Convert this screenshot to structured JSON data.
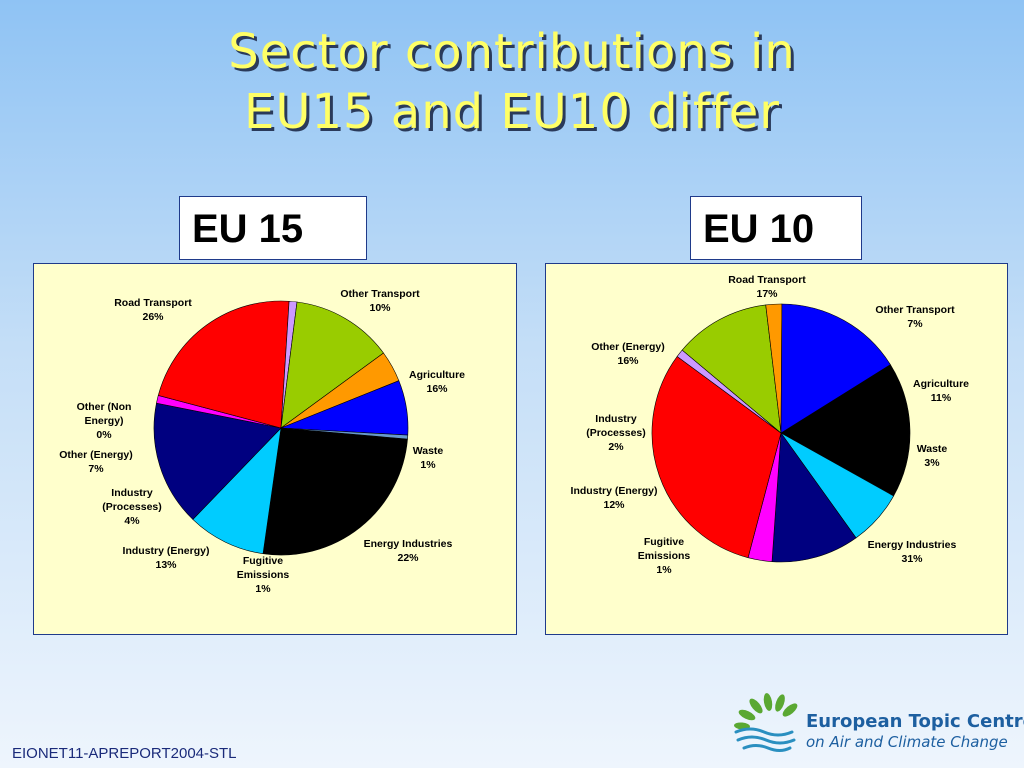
{
  "slide": {
    "title_line1": "Sector contributions in",
    "title_line2": "EU15 and EU10 differ",
    "footer": "EIONET11-APREPORT2004-STL",
    "logo": {
      "line1": "European Topic Centre",
      "line2": "on Air and Climate Change",
      "icon": "leaf-fan-water-icon"
    }
  },
  "colors": {
    "road_transport": "#000000",
    "other_transport": "#00ccff",
    "agriculture": "#000080",
    "waste": "#ff00ff",
    "energy_industries": "#ff0000",
    "fugitive_emissions": "#cc99ff",
    "industry_energy": "#99cc00",
    "industry_processes": "#ff9900",
    "other_energy": "#0000ff",
    "other_non_energy": "#6699cc"
  },
  "chart_data": [
    {
      "type": "pie",
      "title": "EU 15",
      "slices": [
        {
          "key": "road_transport",
          "label": "Road Transport",
          "value": 26,
          "value_label": "26%"
        },
        {
          "key": "other_transport",
          "label": "Other Transport",
          "value": 10,
          "value_label": "10%"
        },
        {
          "key": "agriculture",
          "label": "Agriculture",
          "value": 16,
          "value_label": "16%"
        },
        {
          "key": "waste",
          "label": "Waste",
          "value": 1,
          "value_label": "1%"
        },
        {
          "key": "energy_industries",
          "label": "Energy Industries",
          "value": 22,
          "value_label": "22%"
        },
        {
          "key": "fugitive_emissions",
          "label": "Fugitive Emissions",
          "value": 1,
          "value_label": "1%"
        },
        {
          "key": "industry_energy",
          "label": "Industry (Energy)",
          "value": 13,
          "value_label": "13%"
        },
        {
          "key": "industry_processes",
          "label": "Industry (Processes)",
          "value": 4,
          "value_label": "4%"
        },
        {
          "key": "other_energy",
          "label": "Other (Energy)",
          "value": 7,
          "value_label": "7%"
        },
        {
          "key": "other_non_energy",
          "label": "Other (Non Energy)",
          "value": 0.5,
          "value_label": "0%"
        }
      ]
    },
    {
      "type": "pie",
      "title": "EU 10",
      "slices": [
        {
          "key": "road_transport",
          "label": "Road Transport",
          "value": 17,
          "value_label": "17%"
        },
        {
          "key": "other_transport",
          "label": "Other Transport",
          "value": 7,
          "value_label": "7%"
        },
        {
          "key": "agriculture",
          "label": "Agriculture",
          "value": 11,
          "value_label": "11%"
        },
        {
          "key": "waste",
          "label": "Waste",
          "value": 3,
          "value_label": "3%"
        },
        {
          "key": "energy_industries",
          "label": "Energy Industries",
          "value": 31,
          "value_label": "31%"
        },
        {
          "key": "fugitive_emissions",
          "label": "Fugitive Emissions",
          "value": 1,
          "value_label": "1%"
        },
        {
          "key": "industry_energy",
          "label": "Industry (Energy)",
          "value": 12,
          "value_label": "12%"
        },
        {
          "key": "industry_processes",
          "label": "Industry (Processes)",
          "value": 2,
          "value_label": "2%"
        },
        {
          "key": "other_energy",
          "label": "Other (Energy)",
          "value": 16,
          "value_label": "16%"
        }
      ]
    }
  ]
}
